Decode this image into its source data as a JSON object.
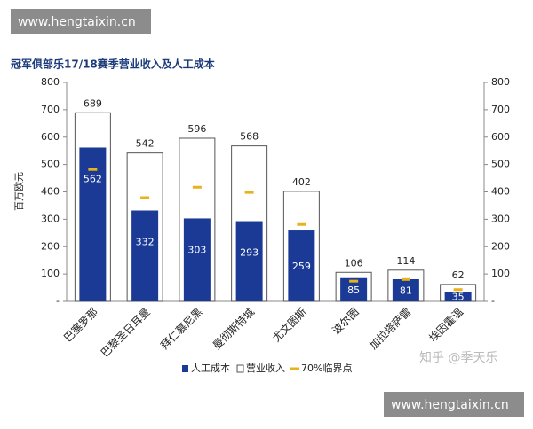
{
  "watermark_top": "www.hengtaixin.cn",
  "watermark_bottom": "www.hengtaixin.cn",
  "watermark_zhihu": "知乎 @季天乐",
  "chart_data": {
    "type": "bar",
    "title": "冠军俱部乐17/18赛季营业收入及人工成本",
    "y_label": "百万欧元",
    "categories": [
      "巴塞罗那",
      "巴黎圣日耳曼",
      "拜仁慕尼黑",
      "曼彻斯特城",
      "尤文图斯",
      "波尔图",
      "加拉塔萨雷",
      "埃因霍温"
    ],
    "series": [
      {
        "name": "人工成本",
        "color": "#1a3a96",
        "values": [
          562,
          332,
          303,
          293,
          259,
          85,
          81,
          35
        ]
      },
      {
        "name": "营业收入",
        "color": "#ffffff",
        "values": [
          689,
          542,
          596,
          568,
          402,
          106,
          114,
          62
        ]
      },
      {
        "name": "70%临界点",
        "color": "#e8b21a",
        "values": [
          482,
          379,
          417,
          398,
          281,
          74,
          80,
          43
        ]
      }
    ],
    "ylim": [
      0,
      800
    ],
    "yticks": [
      {
        "value": 0,
        "label": "-"
      },
      100,
      200,
      300,
      400,
      500,
      600,
      700,
      800
    ],
    "y2lim": [
      0,
      800
    ],
    "y2ticks": [
      {
        "value": 0,
        "label": "-"
      },
      100,
      200,
      300,
      400,
      500,
      600,
      700,
      800
    ]
  }
}
